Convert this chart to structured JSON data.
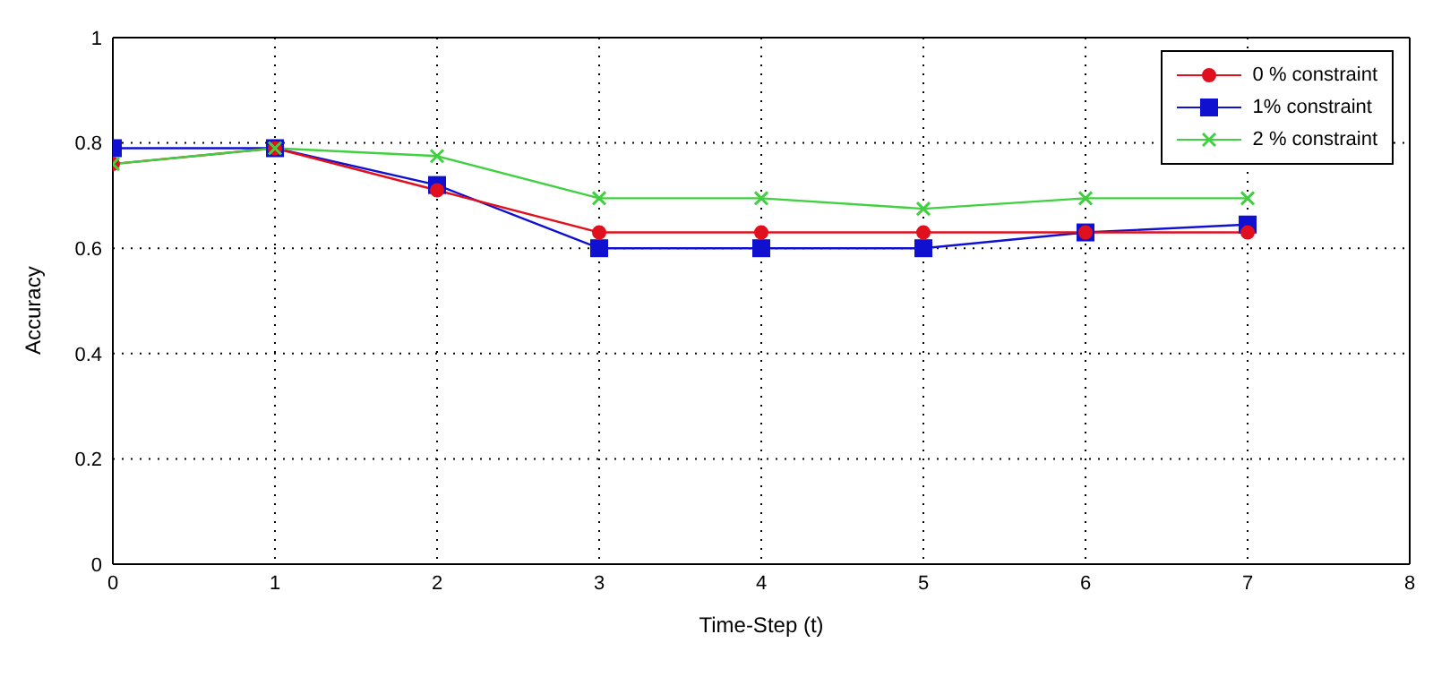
{
  "chart_data": {
    "type": "line",
    "xlabel": "Time-Step (t)",
    "ylabel": "Accuracy",
    "x": [
      0,
      1,
      2,
      3,
      4,
      5,
      6,
      7
    ],
    "series": [
      {
        "name": "0 % constraint",
        "color": "#e0101e",
        "marker": "circle",
        "values": [
          0.76,
          0.79,
          0.71,
          0.63,
          0.63,
          0.63,
          0.63,
          0.63
        ]
      },
      {
        "name": "1% constraint",
        "color": "#1010d0",
        "marker": "square",
        "values": [
          0.79,
          0.79,
          0.72,
          0.6,
          0.6,
          0.6,
          0.63,
          0.645
        ]
      },
      {
        "name": "2 % constraint",
        "color": "#40d040",
        "marker": "cross",
        "values": [
          0.76,
          0.79,
          0.775,
          0.695,
          0.695,
          0.675,
          0.695,
          0.695
        ]
      }
    ],
    "xlim": [
      0,
      8
    ],
    "xticks": [
      0,
      1,
      2,
      3,
      4,
      5,
      6,
      7,
      8
    ],
    "ylim": [
      0,
      1
    ],
    "yticks": [
      0,
      0.2,
      0.4,
      0.6,
      0.8,
      1
    ],
    "grid": true,
    "legend": "top right"
  }
}
